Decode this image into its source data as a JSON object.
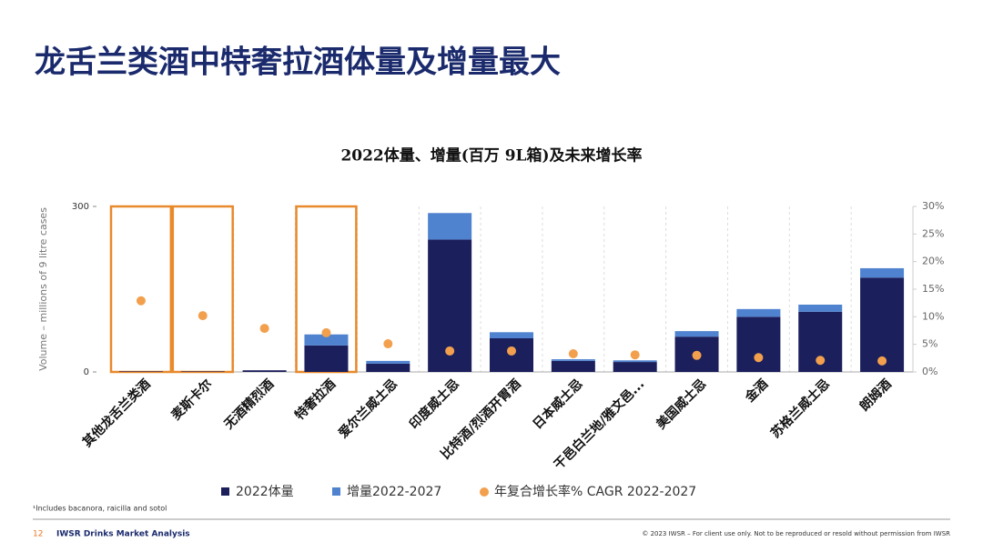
{
  "page_title": "龙舌兰类酒中特奢拉酒体量及增量最大",
  "chart_data": {
    "type": "bar",
    "stacked": true,
    "title": "2022体量、增量(百万 9L箱)及未来增长率",
    "y_label": "Volume – millions of 9 litre cases",
    "categories": [
      "其他龙舌兰类酒",
      "麦斯卡尔",
      "无酒精烈酒",
      "特奢拉酒",
      "爱尔兰威士忌",
      "印度威士忌",
      "比特酒/烈酒开胃酒",
      "日本威士忌",
      "干邑白兰地/雅文邑...",
      "美国威士忌",
      "金酒",
      "苏格兰威士忌",
      "朗姆酒"
    ],
    "series": [
      {
        "name": "2022体量",
        "color": "#1b1f5c",
        "values": [
          1,
          1,
          3,
          48,
          15,
          240,
          61,
          20,
          18,
          64,
          100,
          109,
          171
        ]
      },
      {
        "name": "增量2022-2027",
        "color": "#4f82cf",
        "values": [
          0,
          0,
          0,
          20,
          5,
          48,
          11,
          3,
          3,
          10,
          14,
          13,
          17
        ]
      },
      {
        "name": "年复合增长率% CAGR 2022-2027",
        "color": "#f2a04e",
        "type": "scatter",
        "axis": "y2",
        "values": [
          12.9,
          10.2,
          7.9,
          7.1,
          5.1,
          3.8,
          3.8,
          3.3,
          3.1,
          3.0,
          2.6,
          2.1,
          2.0
        ]
      }
    ],
    "ylim": [
      0,
      300
    ],
    "yticks": [
      0,
      300
    ],
    "y2lim": [
      0,
      30
    ],
    "y2ticks": [
      {
        "value": 0,
        "label": "0%"
      },
      {
        "value": 5,
        "label": "5%"
      },
      {
        "value": 10,
        "label": "10%"
      },
      {
        "value": 15,
        "label": "15%"
      },
      {
        "value": 20,
        "label": "20%"
      },
      {
        "value": 25,
        "label": "25%"
      },
      {
        "value": 30,
        "label": "30%"
      }
    ]
  },
  "footnote": "¹Includes bacanora, raicilla and sotol",
  "footer": {
    "page": "12",
    "brand": "IWSR Drinks Market Analysis",
    "copyright": "© 2023 IWSR – For client use only. Not to be reproduced or resold without permission from IWSR"
  }
}
